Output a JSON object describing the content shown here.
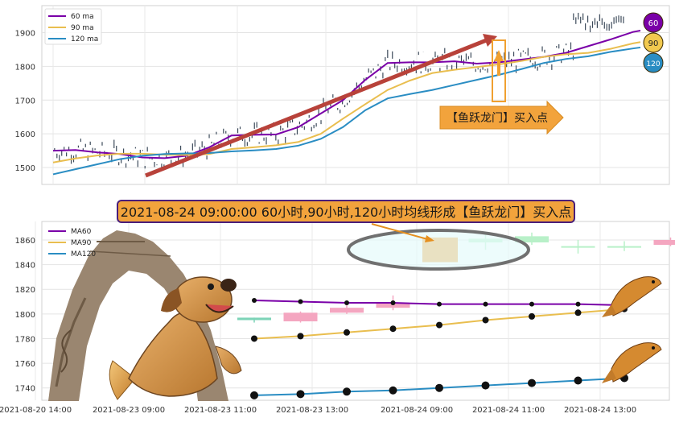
{
  "chart_data": [
    {
      "type": "line",
      "title": "",
      "xlabel": "",
      "ylabel": "",
      "ylim": [
        1450,
        1980
      ],
      "yticks": [
        1500,
        1600,
        1700,
        1800,
        1900
      ],
      "grid": true,
      "legend_position": "top-left",
      "series": [
        {
          "name": "60 ma",
          "color": "#7a00a8",
          "x": [
            0,
            30,
            60,
            90,
            120,
            150,
            180,
            210,
            240,
            270,
            300,
            330,
            360,
            390,
            420,
            450,
            480,
            510,
            540,
            570,
            600,
            630,
            660,
            690,
            720,
            750,
            780,
            790
          ],
          "values": [
            1550,
            1552,
            1545,
            1540,
            1530,
            1528,
            1535,
            1560,
            1595,
            1597,
            1598,
            1620,
            1660,
            1700,
            1760,
            1810,
            1812,
            1812,
            1815,
            1808,
            1812,
            1820,
            1828,
            1840,
            1860,
            1880,
            1902,
            1906
          ]
        },
        {
          "name": "90 ma",
          "color": "#e9be4f",
          "x": [
            0,
            30,
            60,
            90,
            120,
            150,
            180,
            210,
            240,
            270,
            300,
            330,
            360,
            390,
            420,
            450,
            480,
            510,
            540,
            570,
            600,
            630,
            660,
            690,
            720,
            750,
            780,
            790
          ],
          "values": [
            1515,
            1527,
            1536,
            1541,
            1541,
            1538,
            1537,
            1540,
            1555,
            1560,
            1566,
            1576,
            1600,
            1645,
            1688,
            1730,
            1758,
            1780,
            1790,
            1798,
            1806,
            1816,
            1828,
            1836,
            1840,
            1852,
            1868,
            1872
          ]
        },
        {
          "name": "120 ma",
          "color": "#2a8dc3",
          "x": [
            0,
            30,
            60,
            90,
            120,
            150,
            180,
            210,
            240,
            270,
            300,
            330,
            360,
            390,
            420,
            450,
            480,
            510,
            540,
            570,
            600,
            630,
            660,
            690,
            720,
            750,
            780,
            790
          ],
          "values": [
            1480,
            1495,
            1510,
            1525,
            1535,
            1540,
            1542,
            1543,
            1548,
            1551,
            1555,
            1565,
            1585,
            1620,
            1670,
            1705,
            1718,
            1730,
            1745,
            1760,
            1775,
            1792,
            1810,
            1822,
            1830,
            1843,
            1853,
            1856
          ]
        }
      ],
      "arrow_label": "【鱼跃龙门】买入点",
      "badges": [
        "60",
        "90",
        "120"
      ]
    },
    {
      "type": "line",
      "title": "2021-08-24 09:00:00 60小时,90小时,120小时均线形成【鱼跃龙门】买入点",
      "xlabel": "",
      "ylabel": "",
      "ylim": [
        1730,
        1875
      ],
      "yticks": [
        1740,
        1760,
        1780,
        1800,
        1820,
        1840,
        1860
      ],
      "xticks": [
        "2021-08-20 14:00",
        "2021-08-23 09:00",
        "2021-08-23 11:00",
        "2021-08-23 13:00",
        "2021-08-24 09:00",
        "2021-08-24 11:00",
        "2021-08-24 13:00"
      ],
      "grid": true,
      "legend_position": "top-left",
      "series": [
        {
          "name": "MA60",
          "color": "#7a00a8",
          "x": [
            0,
            1,
            2,
            3,
            4,
            5,
            6,
            7,
            8
          ],
          "values": [
            1811,
            1810,
            1809,
            1809,
            1808,
            1808,
            1808,
            1808,
            1807
          ]
        },
        {
          "name": "MA90",
          "color": "#e9be4f",
          "x": [
            0,
            1,
            2,
            3,
            4,
            5,
            6,
            7,
            8
          ],
          "values": [
            1780,
            1782,
            1785,
            1788,
            1791,
            1795,
            1798,
            1801,
            1804
          ]
        },
        {
          "name": "MA120",
          "color": "#2a8dc3",
          "x": [
            0,
            1,
            2,
            3,
            4,
            5,
            6,
            7,
            8
          ],
          "values": [
            1734,
            1735,
            1737,
            1738,
            1740,
            1742,
            1744,
            1746,
            1748
          ]
        }
      ],
      "candles_x": [
        0,
        1,
        2,
        3,
        4,
        5,
        6,
        7,
        8,
        9
      ],
      "candles": [
        {
          "open": 1795,
          "close": 1797,
          "high": 1797,
          "low": 1793
        },
        {
          "open": 1794,
          "close": 1801,
          "high": 1802,
          "low": 1793
        },
        {
          "open": 1801,
          "close": 1805,
          "high": 1807,
          "low": 1800
        },
        {
          "open": 1805,
          "close": 1809,
          "high": 1815,
          "low": 1803
        },
        {
          "open": 1842,
          "close": 1862,
          "high": 1862,
          "low": 1842
        },
        {
          "open": 1858,
          "close": 1861,
          "high": 1866,
          "low": 1852
        },
        {
          "open": 1858,
          "close": 1863,
          "high": 1866,
          "low": 1856
        },
        {
          "open": 1854,
          "close": 1855,
          "high": 1860,
          "low": 1849
        },
        {
          "open": 1854,
          "close": 1855,
          "high": 1859,
          "low": 1851
        },
        {
          "open": 1856,
          "close": 1860,
          "high": 1862,
          "low": 1855
        }
      ]
    }
  ]
}
